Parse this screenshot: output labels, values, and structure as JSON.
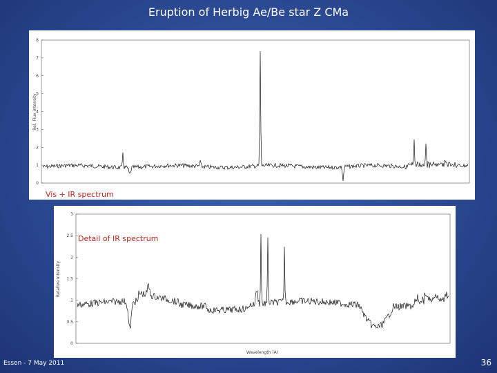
{
  "title": "Eruption of Herbig Ae/Be star Z CMa",
  "figures": [
    {
      "caption": "Vis + IR spectrum",
      "y_label": "Rel. Flux intensity",
      "y_ticks": [
        "0",
        "1",
        "2",
        "3",
        "4",
        "5",
        "6",
        "7",
        "8"
      ]
    },
    {
      "caption": "Detail of IR spectrum",
      "y_label": "Relative intensity",
      "x_label": "Wavelength (A)",
      "y_ticks": [
        "0",
        "0.5",
        "1",
        "1.5",
        "2",
        "2.5",
        "3"
      ]
    }
  ],
  "footer": "Essen - 7 May 2011",
  "page_number": "36"
}
